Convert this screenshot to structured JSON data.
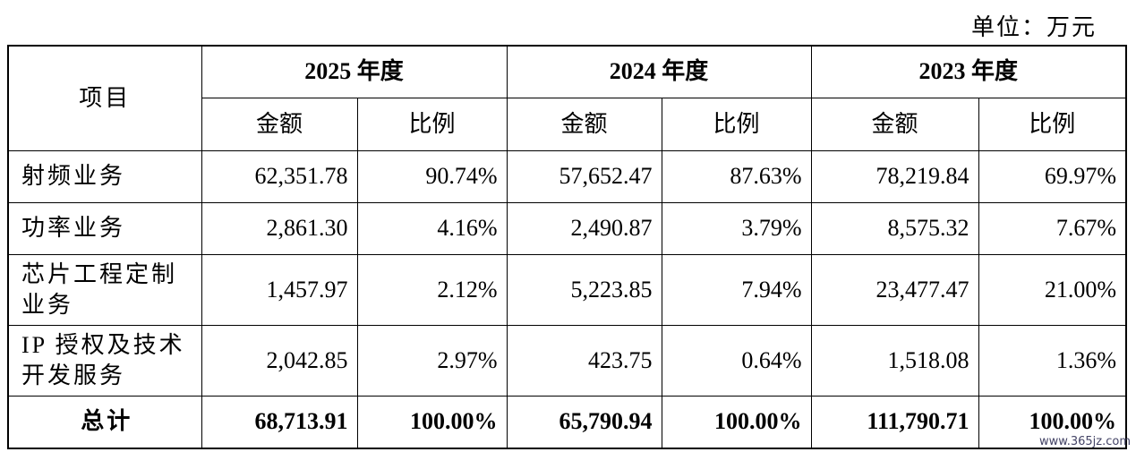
{
  "unit": "单位：万元",
  "table": {
    "corner": "项目",
    "years": [
      "2025 年度",
      "2024 年度",
      "2023 年度"
    ],
    "subheaders": [
      "金额",
      "比例",
      "金额",
      "比例",
      "金额",
      "比例"
    ],
    "rows": [
      [
        "射频业务",
        "62,351.78",
        "90.74%",
        "57,652.47",
        "87.63%",
        "78,219.84",
        "69.97%"
      ],
      [
        "功率业务",
        "2,861.30",
        "4.16%",
        "2,490.87",
        "3.79%",
        "8,575.32",
        "7.67%"
      ],
      [
        "芯片工程定制\n业务",
        "1,457.97",
        "2.12%",
        "5,223.85",
        "7.94%",
        "23,477.47",
        "21.00%"
      ],
      [
        "IP 授权及技术\n开发服务",
        "2,042.85",
        "2.97%",
        "423.75",
        "0.64%",
        "1,518.08",
        "1.36%"
      ]
    ],
    "total": [
      "总计",
      "68,713.91",
      "100.00%",
      "65,790.94",
      "100.00%",
      "111,790.71",
      "100.00%"
    ]
  },
  "watermark": "www.365jz.com"
}
